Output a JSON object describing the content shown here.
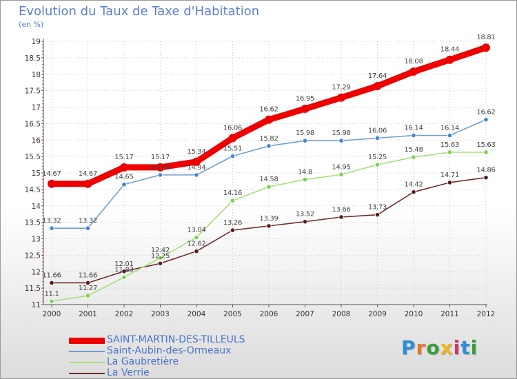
{
  "title": "Evolution du Taux de Taxe d'Habitation",
  "subtitle": "(en %)",
  "logo": {
    "text": "Proxiti",
    "letter_colors": [
      "#2b8fd6",
      "#e8742a",
      "#3a9e3a",
      "#e8b820",
      "#d6336c",
      "#2b8fd6",
      "#3a9e3a"
    ]
  },
  "chart_data": {
    "type": "line",
    "x": [
      "2000",
      "2001",
      "2002",
      "2003",
      "2004",
      "2005",
      "2006",
      "2007",
      "2008",
      "2009",
      "2010",
      "2011",
      "2012"
    ],
    "ylim": [
      11,
      19
    ],
    "yticks": [
      "11",
      "11.5",
      "12",
      "12.5",
      "13",
      "13.5",
      "14",
      "14.5",
      "15",
      "15.5",
      "16",
      "16.5",
      "17",
      "17.5",
      "18",
      "18.5",
      "19"
    ],
    "grid": true,
    "legend_position": "bottom-left",
    "series": [
      {
        "name": "SAINT-MARTIN-DES-TILLEULS",
        "color": "#ee0000",
        "marker_color": "#ee0000",
        "emphasis": true,
        "values": [
          14.67,
          14.67,
          15.17,
          15.17,
          15.34,
          16.06,
          16.62,
          16.95,
          17.29,
          17.64,
          18.08,
          18.44,
          18.81
        ],
        "labels": [
          "14.67",
          "14.67",
          "15.17",
          "15.17",
          "15.34",
          "16.06",
          "16.62",
          "16.95",
          "17.29",
          "17.64",
          "18.08",
          "18.44",
          "18.81"
        ]
      },
      {
        "name": "Saint-Aubin-des-Ormeaux",
        "color": "#6f9fd0",
        "marker_color": "#3f87d4",
        "emphasis": false,
        "values": [
          13.32,
          13.32,
          14.65,
          14.94,
          14.94,
          15.51,
          15.82,
          15.98,
          15.98,
          16.06,
          16.14,
          16.14,
          16.62
        ],
        "labels": [
          "13.32",
          "13.32",
          "14.65",
          "14.94",
          "14.94",
          "15.51",
          "15.82",
          "15.98",
          "15.98",
          "16.06",
          "16.14",
          "16.14",
          "16.62"
        ]
      },
      {
        "name": "La Gaubretière",
        "color": "#a6e07a",
        "marker_color": "#7fd04a",
        "emphasis": false,
        "values": [
          11.1,
          11.27,
          11.83,
          12.42,
          13.04,
          14.16,
          14.58,
          14.8,
          14.95,
          15.25,
          15.48,
          15.63,
          15.63
        ],
        "labels": [
          "11.1",
          "11.27",
          "11.83",
          "12.42",
          "13.04",
          "14.16",
          "14.58",
          "14.8",
          "14.95",
          "15.25",
          "15.48",
          "15.63",
          "15.63"
        ]
      },
      {
        "name": "La Verrie",
        "color": "#6e2e2e",
        "marker_color": "#5a1a1a",
        "emphasis": false,
        "values": [
          11.66,
          11.66,
          12.01,
          12.25,
          12.62,
          13.26,
          13.39,
          13.52,
          13.66,
          13.73,
          14.42,
          14.71,
          14.86
        ],
        "labels": [
          "11.66",
          "11.66",
          "12.01",
          "12.25",
          "12.62",
          "13.26",
          "13.39",
          "13.52",
          "13.66",
          "13.73",
          "14.42",
          "14.71",
          "14.86"
        ]
      }
    ]
  }
}
